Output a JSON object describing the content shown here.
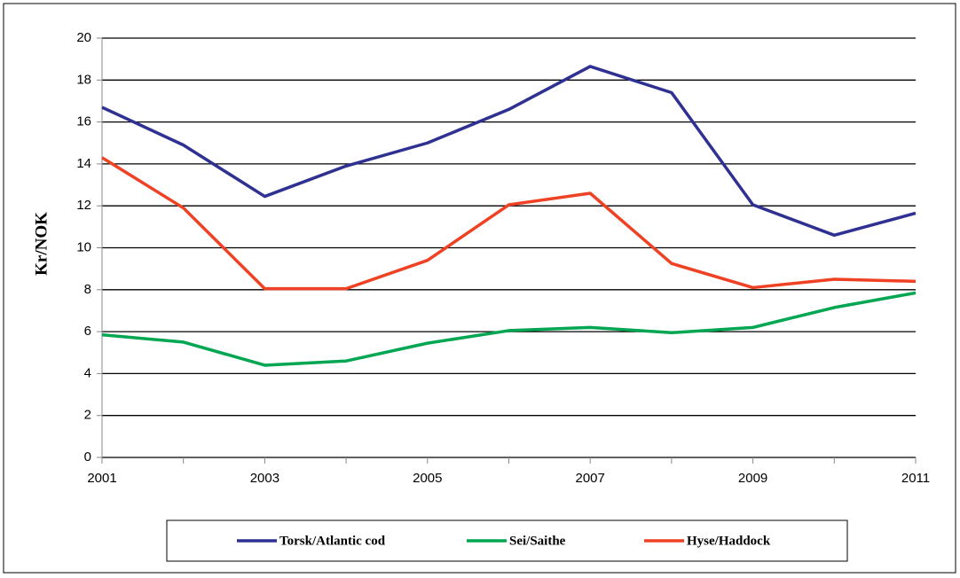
{
  "chart_data": {
    "type": "line",
    "ylabel": "Kr/NOK",
    "x": [
      2001,
      2002,
      2003,
      2004,
      2005,
      2006,
      2007,
      2008,
      2009,
      2010,
      2011
    ],
    "series": [
      {
        "name": "Torsk/Atlantic cod",
        "color": "#2e3192",
        "values": [
          16.7,
          14.9,
          12.45,
          13.9,
          15.0,
          16.6,
          18.65,
          17.4,
          12.05,
          10.6,
          11.65
        ]
      },
      {
        "name": "Sei/Saithe",
        "color": "#00a651",
        "values": [
          5.85,
          5.5,
          4.4,
          4.6,
          5.45,
          6.05,
          6.2,
          5.95,
          6.2,
          7.15,
          7.85
        ]
      },
      {
        "name": "Hyse/Haddock",
        "color": "#ef4123",
        "values": [
          14.3,
          11.9,
          8.05,
          8.05,
          9.4,
          12.05,
          12.6,
          9.25,
          8.1,
          8.5,
          8.4
        ]
      }
    ],
    "xlim": [
      2001,
      2011
    ],
    "xticks": [
      2001,
      2003,
      2005,
      2007,
      2009,
      2011
    ],
    "ylim": [
      0,
      20
    ],
    "yticks": [
      0,
      2,
      4,
      6,
      8,
      10,
      12,
      14,
      16,
      18,
      20
    ],
    "grid": true,
    "legend": "bottom"
  }
}
